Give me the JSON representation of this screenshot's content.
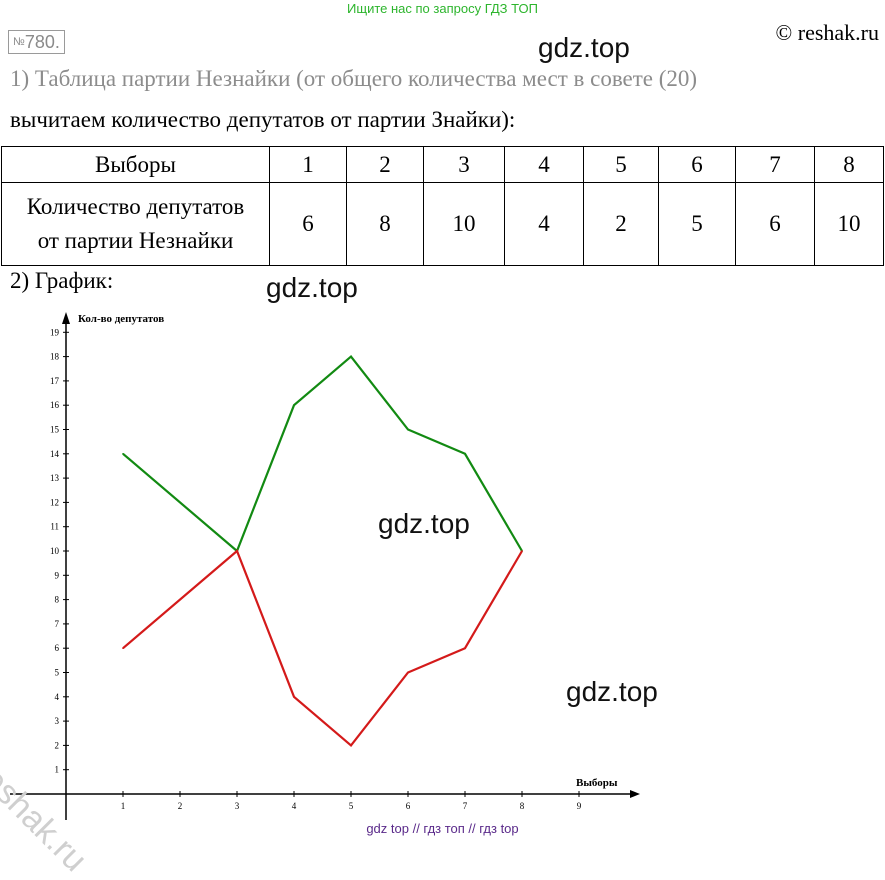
{
  "header": {
    "search_text": "Ищите нас по запросу ГДЗ ТОП",
    "copyright": "© reshak.ru",
    "task_number_prefix": "№",
    "task_number": "780."
  },
  "watermarks": {
    "gdz1": "gdz.top",
    "gdz2": "gdz.top",
    "gdz3": "gdz.top",
    "gdz4": "gdz.top",
    "side": "reshak.ru"
  },
  "text": {
    "line1": "1) Таблица партии Незнайки (от общего количества мест в совете (20)",
    "line2": "вычитаем количество депутатов от партии Знайки):",
    "line3": "2) График:"
  },
  "table": {
    "row1_header": "Выборы",
    "row2_header_line1": "Количество депутатов",
    "row2_header_line2": "от партии Незнайки",
    "elections": [
      "1",
      "2",
      "3",
      "4",
      "5",
      "6",
      "7",
      "8"
    ],
    "counts": [
      "6",
      "8",
      "10",
      "4",
      "2",
      "5",
      "6",
      "10"
    ]
  },
  "chart_data": {
    "type": "line",
    "xlabel": "Выборы",
    "ylabel": "Кол-во депутатов",
    "x_ticks": [
      "1",
      "2",
      "3",
      "4",
      "5",
      "6",
      "7",
      "8",
      "9"
    ],
    "y_ticks": [
      "1",
      "2",
      "3",
      "4",
      "5",
      "6",
      "7",
      "8",
      "9",
      "10",
      "11",
      "12",
      "13",
      "14",
      "15",
      "16",
      "17",
      "18",
      "19"
    ],
    "xlim": [
      0,
      9.9
    ],
    "ylim": [
      0,
      20
    ],
    "grid": false,
    "series": [
      {
        "color": "#128a12",
        "x": [
          1,
          3,
          4,
          5,
          6,
          7,
          8
        ],
        "values": [
          14,
          10,
          16,
          18,
          15,
          14,
          10
        ]
      },
      {
        "color": "#d41a1a",
        "x": [
          1,
          3,
          4,
          5,
          6,
          7,
          8
        ],
        "values": [
          6,
          10,
          4,
          2,
          5,
          6,
          10
        ]
      }
    ]
  },
  "footer": {
    "text": "gdz top  //  гдз топ  //  гдз top"
  }
}
